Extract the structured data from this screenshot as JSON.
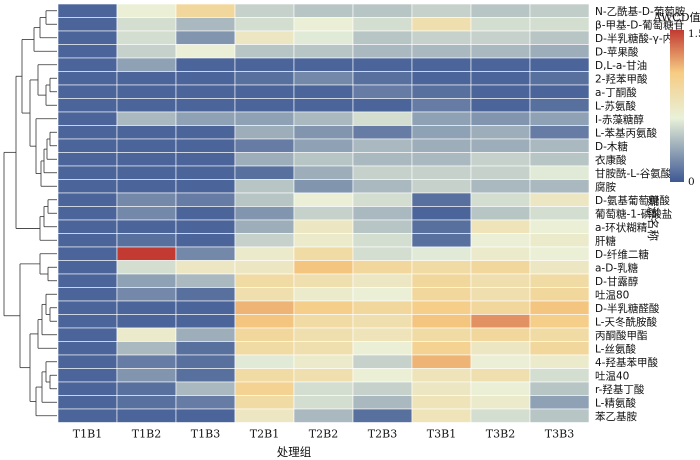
{
  "chart_data": {
    "type": "heatmap",
    "xlabel": "处理组",
    "ylabel": "碳源名称",
    "columns": [
      "T1B1",
      "T1B2",
      "T1B3",
      "T2B1",
      "T2B2",
      "T2B3",
      "T3B1",
      "T3B2",
      "T3B3"
    ],
    "rows": [
      "N-乙酰基-D-葡萄胺",
      "β-甲基-D-葡萄糖苷",
      "D-半乳糖酸-γ-内酯",
      "D-苹果酸",
      "D,L-a-甘油",
      "2-羟苯甲酸",
      "a-丁酮酸",
      "L-苏氨酸",
      "I-赤藻糖醇",
      "L-苯基丙氨酸",
      "D-木糖",
      "衣康酸",
      "甘胺酰-L-谷氨酸",
      "腐胺",
      "D-氨基葡萄糖酸",
      "葡萄糖-1-磷酸盐",
      "a-环状糊精",
      "肝糖",
      "D-纤维二糖",
      "a-D-乳糖",
      "D-甘露醇",
      "吐温80",
      "D-半乳糖醛酸",
      "L-天冬酰胺酸",
      "丙酮酸甲酯",
      "L-丝氨酸",
      "4-羟基苯甲酸",
      "吐温40",
      "r-羟基丁酸",
      "L-精氨酸",
      "苯乙基胺"
    ],
    "values": [
      [
        0.05,
        0.65,
        0.95,
        0.5,
        0.45,
        0.45,
        0.5,
        0.45,
        0.48
      ],
      [
        0.05,
        0.55,
        0.4,
        0.55,
        0.65,
        0.55,
        0.85,
        0.55,
        0.55
      ],
      [
        0.05,
        0.55,
        0.25,
        0.75,
        0.6,
        0.45,
        0.5,
        0.5,
        0.45
      ],
      [
        0.05,
        0.5,
        0.65,
        0.45,
        0.45,
        0.4,
        0.4,
        0.4,
        0.35
      ],
      [
        0.05,
        0.3,
        0.05,
        0.05,
        0.05,
        0.05,
        0.05,
        0.05,
        0.05
      ],
      [
        0.05,
        0.05,
        0.05,
        0.1,
        0.2,
        0.1,
        0.05,
        0.05,
        0.1
      ],
      [
        0.05,
        0.05,
        0.05,
        0.05,
        0.05,
        0.15,
        0.1,
        0.05,
        0.05
      ],
      [
        0.05,
        0.05,
        0.05,
        0.05,
        0.05,
        0.05,
        0.15,
        0.05,
        0.1
      ],
      [
        0.05,
        0.4,
        0.3,
        0.3,
        0.4,
        0.55,
        0.3,
        0.25,
        0.3
      ],
      [
        0.05,
        0.05,
        0.05,
        0.35,
        0.25,
        0.15,
        0.3,
        0.35,
        0.15
      ],
      [
        0.05,
        0.05,
        0.05,
        0.15,
        0.3,
        0.4,
        0.35,
        0.35,
        0.4
      ],
      [
        0.05,
        0.05,
        0.05,
        0.35,
        0.45,
        0.4,
        0.4,
        0.5,
        0.45
      ],
      [
        0.05,
        0.05,
        0.05,
        0.1,
        0.35,
        0.5,
        0.5,
        0.5,
        0.6
      ],
      [
        0.05,
        0.05,
        0.05,
        0.45,
        0.25,
        0.4,
        0.5,
        0.4,
        0.4
      ],
      [
        0.05,
        0.2,
        0.15,
        0.45,
        0.65,
        0.55,
        0.1,
        0.55,
        0.75
      ],
      [
        0.05,
        0.2,
        0.05,
        0.25,
        0.5,
        0.4,
        0.05,
        0.45,
        0.55
      ],
      [
        0.05,
        0.05,
        0.05,
        0.35,
        0.75,
        0.45,
        0.1,
        0.8,
        0.65
      ],
      [
        0.05,
        0.1,
        0.05,
        0.5,
        0.7,
        0.55,
        0.1,
        0.65,
        0.7
      ],
      [
        0.05,
        1.5,
        0.2,
        0.7,
        0.9,
        0.55,
        0.6,
        0.7,
        0.65
      ],
      [
        0.05,
        0.55,
        0.75,
        0.75,
        1.1,
        0.95,
        0.9,
        0.95,
        0.75
      ],
      [
        0.05,
        0.3,
        0.4,
        0.9,
        0.85,
        0.75,
        0.95,
        0.85,
        0.9
      ],
      [
        0.05,
        0.2,
        0.1,
        0.85,
        0.7,
        0.65,
        0.95,
        0.85,
        0.95
      ],
      [
        0.05,
        0.05,
        0.05,
        1.15,
        1.05,
        0.95,
        1.05,
        0.95,
        1.1
      ],
      [
        0.05,
        0.05,
        0.05,
        1.1,
        0.9,
        0.85,
        1.1,
        1.25,
        1.05
      ],
      [
        0.05,
        0.7,
        0.35,
        0.95,
        0.85,
        0.8,
        0.9,
        0.95,
        0.9
      ],
      [
        0.05,
        0.4,
        0.1,
        0.9,
        0.85,
        0.65,
        1.0,
        0.75,
        0.95
      ],
      [
        0.05,
        0.15,
        0.1,
        0.6,
        0.7,
        0.5,
        1.15,
        0.65,
        0.7
      ],
      [
        0.05,
        0.25,
        0.1,
        0.9,
        0.85,
        0.65,
        0.8,
        0.85,
        0.55
      ],
      [
        0.05,
        0.1,
        0.4,
        1.0,
        0.55,
        0.5,
        0.75,
        0.65,
        0.45
      ],
      [
        0.05,
        0.1,
        0.15,
        0.9,
        0.55,
        0.4,
        0.8,
        0.7,
        0.3
      ],
      [
        0.05,
        0.05,
        0.05,
        0.75,
        0.4,
        0.1,
        0.8,
        0.55,
        0.45
      ]
    ],
    "scale": {
      "min": 0,
      "max": 1.5
    },
    "colors": {
      "low": "#3d5893",
      "mid": "#e9f1d9",
      "midHigh": "#f6cc83",
      "high": "#c23a32"
    },
    "legend": {
      "title": "AWCD值",
      "ticks": [
        "1.5",
        "0"
      ],
      "placement": "right"
    }
  }
}
